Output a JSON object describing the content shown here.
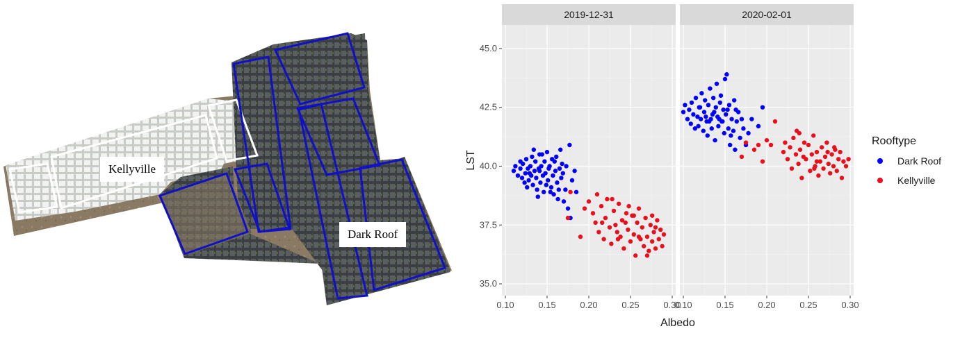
{
  "map": {
    "labels": {
      "kellyville": "Kellyville",
      "dark_roof": "Dark Roof"
    },
    "colors": {
      "outline": "#1010c8",
      "ground": "#8a7a63",
      "dark_roof": "#4a4d50",
      "light_roof": "#e9eaea",
      "vegetation": "#4e6b3c"
    }
  },
  "chart_data": {
    "type": "scatter",
    "facet_by": "date",
    "facets": [
      "2019-12-31",
      "2020-02-01"
    ],
    "xlabel": "Albedo",
    "ylabel": "LST",
    "xlim": [
      0.1,
      0.3
    ],
    "ylim": [
      34.5,
      46.0
    ],
    "xticks": [
      "0.10",
      "0.15",
      "0.20",
      "0.25",
      "0.30"
    ],
    "yticks": [
      "35.0",
      "37.5",
      "40.0",
      "42.5",
      "45.0"
    ],
    "grid": true,
    "legend": {
      "title": "Rooftype",
      "placement": "right"
    },
    "colors": {
      "Dark Roof": "#0000ff",
      "Kellyville": "#e8101c",
      "panel": "#ebebeb",
      "strip": "#d9d9d9"
    },
    "series": [
      {
        "name": "Dark Roof",
        "facets": {
          "2019-12-31": [
            [
              0.11,
              39.8
            ],
            [
              0.112,
              40.0
            ],
            [
              0.115,
              39.6
            ],
            [
              0.118,
              39.9
            ],
            [
              0.12,
              39.5
            ],
            [
              0.121,
              40.1
            ],
            [
              0.123,
              39.3
            ],
            [
              0.124,
              39.7
            ],
            [
              0.125,
              40.3
            ],
            [
              0.127,
              39.9
            ],
            [
              0.128,
              39.4
            ],
            [
              0.13,
              40.0
            ],
            [
              0.131,
              39.6
            ],
            [
              0.132,
              40.4
            ],
            [
              0.133,
              39.2
            ],
            [
              0.135,
              39.8
            ],
            [
              0.136,
              40.2
            ],
            [
              0.137,
              39.5
            ],
            [
              0.138,
              39.0
            ],
            [
              0.14,
              39.9
            ],
            [
              0.141,
              40.5
            ],
            [
              0.142,
              39.3
            ],
            [
              0.143,
              40.0
            ],
            [
              0.145,
              39.6
            ],
            [
              0.146,
              38.9
            ],
            [
              0.147,
              40.2
            ],
            [
              0.148,
              39.7
            ],
            [
              0.15,
              40.6
            ],
            [
              0.151,
              39.4
            ],
            [
              0.152,
              39.9
            ],
            [
              0.153,
              40.0
            ],
            [
              0.155,
              39.1
            ],
            [
              0.156,
              40.3
            ],
            [
              0.157,
              39.6
            ],
            [
              0.158,
              38.8
            ],
            [
              0.16,
              39.8
            ],
            [
              0.161,
              40.4
            ],
            [
              0.162,
              39.3
            ],
            [
              0.163,
              38.6
            ],
            [
              0.165,
              39.9
            ],
            [
              0.166,
              40.7
            ],
            [
              0.167,
              39.5
            ],
            [
              0.168,
              40.1
            ],
            [
              0.17,
              38.5
            ],
            [
              0.172,
              39.0
            ],
            [
              0.173,
              40.0
            ],
            [
              0.175,
              38.2
            ],
            [
              0.177,
              40.9
            ],
            [
              0.18,
              39.4
            ],
            [
              0.178,
              37.8
            ],
            [
              0.183,
              39.8
            ],
            [
              0.185,
              38.9
            ],
            [
              0.118,
              40.2
            ],
            [
              0.126,
              39.1
            ],
            [
              0.134,
              40.7
            ],
            [
              0.139,
              38.7
            ],
            [
              0.144,
              40.5
            ],
            [
              0.149,
              39.2
            ],
            [
              0.154,
              38.9
            ],
            [
              0.159,
              40.2
            ],
            [
              0.164,
              39.0
            ],
            [
              0.169,
              39.7
            ],
            [
              0.129,
              39.7
            ],
            [
              0.141,
              39.8
            ]
          ],
          "2020-02-01": [
            [
              0.1,
              42.3
            ],
            [
              0.102,
              42.6
            ],
            [
              0.105,
              42.0
            ],
            [
              0.107,
              42.4
            ],
            [
              0.109,
              41.8
            ],
            [
              0.11,
              42.7
            ],
            [
              0.112,
              42.2
            ],
            [
              0.114,
              41.6
            ],
            [
              0.115,
              42.9
            ],
            [
              0.117,
              42.1
            ],
            [
              0.118,
              41.7
            ],
            [
              0.12,
              42.5
            ],
            [
              0.121,
              42.0
            ],
            [
              0.122,
              43.1
            ],
            [
              0.124,
              41.5
            ],
            [
              0.125,
              42.3
            ],
            [
              0.126,
              42.8
            ],
            [
              0.128,
              41.9
            ],
            [
              0.129,
              41.3
            ],
            [
              0.13,
              42.6
            ],
            [
              0.132,
              43.3
            ],
            [
              0.133,
              42.0
            ],
            [
              0.134,
              41.6
            ],
            [
              0.136,
              42.9
            ],
            [
              0.137,
              42.3
            ],
            [
              0.138,
              41.1
            ],
            [
              0.14,
              43.5
            ],
            [
              0.141,
              42.1
            ],
            [
              0.142,
              41.7
            ],
            [
              0.144,
              42.7
            ],
            [
              0.145,
              43.0
            ],
            [
              0.146,
              41.9
            ],
            [
              0.148,
              42.4
            ],
            [
              0.149,
              41.4
            ],
            [
              0.15,
              43.7
            ],
            [
              0.151,
              42.2
            ],
            [
              0.152,
              43.9
            ],
            [
              0.154,
              41.6
            ],
            [
              0.155,
              42.6
            ],
            [
              0.156,
              40.9
            ],
            [
              0.158,
              42.0
            ],
            [
              0.16,
              41.5
            ],
            [
              0.161,
              42.8
            ],
            [
              0.162,
              40.7
            ],
            [
              0.164,
              41.9
            ],
            [
              0.166,
              42.3
            ],
            [
              0.168,
              41.2
            ],
            [
              0.17,
              42.0
            ],
            [
              0.172,
              41.6
            ],
            [
              0.175,
              40.9
            ],
            [
              0.178,
              41.4
            ],
            [
              0.182,
              42.0
            ],
            [
              0.19,
              41.7
            ],
            [
              0.195,
              42.5
            ],
            [
              0.119,
              42.5
            ],
            [
              0.131,
              41.9
            ],
            [
              0.139,
              42.5
            ],
            [
              0.147,
              41.9
            ],
            [
              0.153,
              42.4
            ],
            [
              0.157,
              41.3
            ],
            [
              0.163,
              42.4
            ],
            [
              0.127,
              42.1
            ],
            [
              0.135,
              42.2
            ],
            [
              0.143,
              42.0
            ]
          ]
        }
      },
      {
        "name": "Kellyville",
        "facets": {
          "2019-12-31": [
            [
              0.175,
              37.8
            ],
            [
              0.178,
              38.9
            ],
            [
              0.19,
              37.0
            ],
            [
              0.195,
              38.2
            ],
            [
              0.2,
              38.5
            ],
            [
              0.205,
              38.0
            ],
            [
              0.208,
              37.6
            ],
            [
              0.21,
              38.8
            ],
            [
              0.212,
              37.2
            ],
            [
              0.215,
              38.3
            ],
            [
              0.218,
              36.9
            ],
            [
              0.22,
              37.8
            ],
            [
              0.222,
              38.6
            ],
            [
              0.225,
              37.4
            ],
            [
              0.227,
              36.7
            ],
            [
              0.23,
              38.1
            ],
            [
              0.232,
              37.5
            ],
            [
              0.235,
              36.9
            ],
            [
              0.236,
              38.4
            ],
            [
              0.238,
              37.0
            ],
            [
              0.24,
              37.7
            ],
            [
              0.242,
              36.5
            ],
            [
              0.245,
              38.0
            ],
            [
              0.247,
              37.3
            ],
            [
              0.25,
              36.8
            ],
            [
              0.252,
              37.9
            ],
            [
              0.254,
              37.1
            ],
            [
              0.256,
              36.2
            ],
            [
              0.258,
              37.6
            ],
            [
              0.26,
              38.2
            ],
            [
              0.262,
              36.9
            ],
            [
              0.264,
              37.4
            ],
            [
              0.266,
              36.6
            ],
            [
              0.268,
              37.8
            ],
            [
              0.27,
              37.0
            ],
            [
              0.272,
              36.4
            ],
            [
              0.274,
              37.5
            ],
            [
              0.276,
              36.8
            ],
            [
              0.278,
              37.2
            ],
            [
              0.28,
              36.5
            ],
            [
              0.282,
              37.7
            ],
            [
              0.284,
              36.9
            ],
            [
              0.286,
              37.3
            ],
            [
              0.288,
              36.6
            ],
            [
              0.29,
              37.1
            ],
            [
              0.228,
              38.6
            ],
            [
              0.244,
              37.6
            ],
            [
              0.26,
              37.0
            ],
            [
              0.276,
              37.9
            ],
            [
              0.234,
              37.2
            ],
            [
              0.248,
              38.3
            ],
            [
              0.27,
              36.2
            ],
            [
              0.216,
              37.6
            ],
            [
              0.254,
              37.9
            ],
            [
              0.28,
              37.4
            ]
          ],
          "2020-02-01": [
            [
              0.17,
              40.4
            ],
            [
              0.175,
              41.0
            ],
            [
              0.185,
              40.7
            ],
            [
              0.19,
              40.9
            ],
            [
              0.195,
              40.2
            ],
            [
              0.2,
              41.1
            ],
            [
              0.205,
              40.9
            ],
            [
              0.21,
              41.9
            ],
            [
              0.22,
              40.6
            ],
            [
              0.222,
              41.0
            ],
            [
              0.225,
              40.3
            ],
            [
              0.228,
              40.8
            ],
            [
              0.23,
              39.9
            ],
            [
              0.232,
              41.2
            ],
            [
              0.235,
              40.5
            ],
            [
              0.236,
              41.5
            ],
            [
              0.238,
              40.1
            ],
            [
              0.24,
              40.7
            ],
            [
              0.242,
              39.5
            ],
            [
              0.245,
              41.0
            ],
            [
              0.247,
              40.3
            ],
            [
              0.25,
              40.9
            ],
            [
              0.252,
              39.8
            ],
            [
              0.254,
              40.5
            ],
            [
              0.256,
              41.3
            ],
            [
              0.258,
              40.0
            ],
            [
              0.26,
              40.6
            ],
            [
              0.262,
              39.6
            ],
            [
              0.264,
              40.2
            ],
            [
              0.266,
              40.8
            ],
            [
              0.268,
              39.9
            ],
            [
              0.27,
              40.4
            ],
            [
              0.272,
              41.0
            ],
            [
              0.274,
              40.1
            ],
            [
              0.276,
              39.7
            ],
            [
              0.278,
              40.5
            ],
            [
              0.28,
              40.0
            ],
            [
              0.282,
              40.7
            ],
            [
              0.284,
              39.8
            ],
            [
              0.286,
              40.3
            ],
            [
              0.288,
              40.6
            ],
            [
              0.29,
              39.5
            ],
            [
              0.292,
              40.2
            ],
            [
              0.295,
              40.0
            ],
            [
              0.298,
              40.3
            ],
            [
              0.244,
              40.4
            ],
            [
              0.26,
              40.2
            ],
            [
              0.273,
              40.6
            ],
            [
              0.239,
              41.4
            ],
            [
              0.257,
              39.9
            ],
            [
              0.281,
              40.8
            ]
          ]
        }
      }
    ]
  }
}
